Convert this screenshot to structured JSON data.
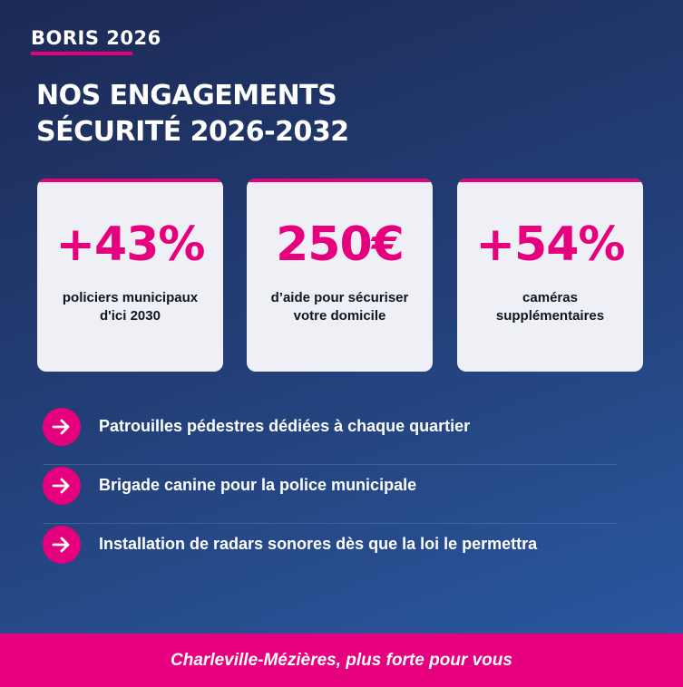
{
  "brand": {
    "logo_text": "BORIS 2026"
  },
  "headline": {
    "line1": "NOS ENGAGEMENTS",
    "line2": "SÉCURITÉ 2026-2032"
  },
  "cards": [
    {
      "value": "+43%",
      "desc_line1": "policiers municipaux",
      "desc_line2": "d'ici 2030"
    },
    {
      "value": "250€",
      "desc_line1": "d’aide pour sécuriser",
      "desc_line2": "votre domicile"
    },
    {
      "value": "+54%",
      "desc_line1": "caméras",
      "desc_line2": "supplémentaires"
    }
  ],
  "commitments": [
    {
      "icon": "arrow-right-icon",
      "text": "Patrouilles pédestres dédiées à chaque quartier"
    },
    {
      "icon": "arrow-right-icon",
      "text": "Brigade canine pour la police municipale"
    },
    {
      "icon": "arrow-right-icon",
      "text": "Installation de radars sonores dès que la loi le permettra"
    }
  ],
  "footer": {
    "tagline": "Charleville-Mézières, plus forte pour vous"
  },
  "colors": {
    "accent": "#e6007e",
    "background_start": "#1c2a55",
    "background_end": "#2b5aa3",
    "card_bg": "#eef0f6"
  }
}
